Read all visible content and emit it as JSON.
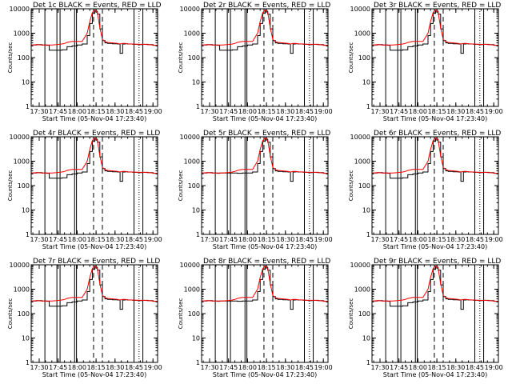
{
  "chart_data": {
    "type": "line",
    "panel_count": 9,
    "title_suffix": " BLACK = Events, RED = LLD",
    "ylabel": "Counts/sec",
    "xlabel": "Start Time (05-Nov-04 17:23:40)",
    "x_tick_labels": [
      "17:30",
      "17:45",
      "18:00",
      "18:15",
      "18:30",
      "18:45",
      "19:00"
    ],
    "x_tick_minutes": [
      30,
      45,
      60,
      75,
      90,
      105,
      120
    ],
    "xlim_minutes": [
      23.67,
      123.67
    ],
    "yscale": "log",
    "ylim": [
      1,
      10000
    ],
    "y_tick_labels": [
      "1",
      "10",
      "100",
      "1000",
      "10000"
    ],
    "series": [
      {
        "name": "Events",
        "color": "#000000"
      },
      {
        "name": "LLD",
        "color": "#ff0000"
      }
    ],
    "x_minutes": [
      24,
      28,
      32,
      36,
      38,
      40,
      44,
      48,
      50,
      52,
      56,
      60,
      64,
      68,
      70,
      72,
      74,
      76,
      78,
      80,
      82,
      84,
      88,
      92,
      94,
      96,
      98,
      100,
      104,
      108,
      112,
      116,
      120,
      123
    ],
    "panels": [
      {
        "title": "Det 1c",
        "events": [
          330,
          340,
          330,
          320,
          200,
          200,
          200,
          210,
          210,
          280,
          300,
          330,
          360,
          800,
          2500,
          6500,
          8000,
          6000,
          1500,
          500,
          400,
          380,
          370,
          360,
          150,
          360,
          370,
          360,
          350,
          340,
          350,
          340,
          320,
          310
        ],
        "lld": [
          330,
          340,
          330,
          330,
          330,
          330,
          340,
          360,
          380,
          420,
          460,
          460,
          460,
          1000,
          3000,
          7000,
          9000,
          7000,
          1700,
          550,
          450,
          420,
          400,
          380,
          360,
          380,
          380,
          370,
          360,
          350,
          350,
          340,
          330,
          320
        ],
        "vlines": [
          34.5,
          44,
          46.5,
          58,
          59.5,
          105,
          112
        ],
        "dashed": [
          73,
          80
        ],
        "dotted": [
          109
        ]
      },
      {
        "title": "Det 2r",
        "events": [
          330,
          340,
          330,
          320,
          200,
          200,
          200,
          210,
          210,
          280,
          300,
          330,
          360,
          800,
          2500,
          6500,
          8000,
          6000,
          1500,
          500,
          400,
          380,
          370,
          360,
          150,
          360,
          370,
          360,
          350,
          340,
          350,
          340,
          320,
          310
        ],
        "lld": [
          330,
          340,
          330,
          330,
          330,
          330,
          340,
          360,
          380,
          420,
          460,
          460,
          460,
          1000,
          3000,
          7000,
          9000,
          7000,
          1700,
          550,
          450,
          420,
          400,
          380,
          360,
          380,
          380,
          370,
          360,
          350,
          350,
          340,
          330,
          320
        ],
        "vlines": [
          34.5,
          44,
          46.5,
          58,
          59.5,
          105,
          112
        ],
        "dashed": [
          73,
          80
        ],
        "dotted": [
          109
        ]
      },
      {
        "title": "Det 3r",
        "events": [
          330,
          340,
          330,
          320,
          200,
          200,
          200,
          210,
          210,
          280,
          300,
          330,
          360,
          800,
          2500,
          6500,
          8000,
          6000,
          1500,
          500,
          400,
          380,
          370,
          360,
          150,
          360,
          370,
          360,
          350,
          340,
          350,
          340,
          320,
          310
        ],
        "lld": [
          330,
          340,
          330,
          330,
          330,
          330,
          340,
          360,
          380,
          420,
          460,
          460,
          460,
          1000,
          3000,
          7000,
          9000,
          7000,
          1700,
          550,
          450,
          420,
          400,
          380,
          360,
          380,
          380,
          370,
          360,
          350,
          350,
          340,
          330,
          320
        ],
        "vlines": [
          34.5,
          44,
          46.5,
          58,
          59.5,
          105,
          112
        ],
        "dashed": [
          73,
          80
        ],
        "dotted": [
          109
        ]
      },
      {
        "title": "Det 4r",
        "events": [
          330,
          340,
          330,
          320,
          200,
          200,
          200,
          210,
          210,
          280,
          300,
          330,
          360,
          800,
          2500,
          6500,
          8000,
          6000,
          1500,
          500,
          400,
          380,
          370,
          360,
          150,
          360,
          370,
          360,
          350,
          340,
          350,
          340,
          320,
          310
        ],
        "lld": [
          330,
          340,
          330,
          330,
          330,
          330,
          340,
          360,
          380,
          420,
          460,
          460,
          460,
          1000,
          3000,
          7000,
          9000,
          7000,
          1700,
          550,
          450,
          420,
          400,
          380,
          360,
          380,
          380,
          370,
          360,
          350,
          350,
          340,
          330,
          320
        ],
        "vlines": [
          34.5,
          44,
          46.5,
          58,
          59.5,
          105,
          112
        ],
        "dashed": [
          73,
          80
        ],
        "dotted": [
          109
        ]
      },
      {
        "title": "Det 5r",
        "events": [
          330,
          340,
          330,
          320,
          330,
          330,
          330,
          330,
          330,
          320,
          330,
          330,
          360,
          800,
          2500,
          6500,
          8000,
          6000,
          1500,
          500,
          400,
          380,
          370,
          360,
          150,
          360,
          370,
          360,
          350,
          340,
          350,
          340,
          320,
          310
        ],
        "lld": [
          330,
          340,
          330,
          330,
          330,
          330,
          340,
          360,
          380,
          420,
          460,
          460,
          460,
          1000,
          3000,
          7000,
          9000,
          7000,
          1700,
          550,
          450,
          420,
          400,
          380,
          360,
          380,
          380,
          370,
          360,
          350,
          350,
          340,
          330,
          320
        ],
        "vlines": [
          34.5,
          44,
          46.5,
          58,
          59.5,
          105,
          112
        ],
        "dashed": [
          73,
          80
        ],
        "dotted": [
          109
        ]
      },
      {
        "title": "Det 6r",
        "events": [
          330,
          340,
          330,
          320,
          200,
          200,
          200,
          210,
          210,
          280,
          300,
          330,
          360,
          800,
          2500,
          6500,
          8000,
          6000,
          1500,
          500,
          400,
          380,
          370,
          360,
          150,
          360,
          370,
          360,
          350,
          340,
          350,
          340,
          320,
          310
        ],
        "lld": [
          330,
          340,
          330,
          330,
          330,
          330,
          340,
          360,
          380,
          420,
          460,
          460,
          460,
          1000,
          3000,
          7000,
          9000,
          7000,
          1700,
          550,
          450,
          420,
          400,
          380,
          360,
          380,
          380,
          370,
          360,
          350,
          350,
          340,
          330,
          320
        ],
        "vlines": [
          34.5,
          44,
          46.5,
          58,
          59.5,
          105,
          112
        ],
        "dashed": [
          73,
          80
        ],
        "dotted": [
          109
        ]
      },
      {
        "title": "Det 7r",
        "events": [
          330,
          340,
          330,
          320,
          200,
          200,
          200,
          210,
          210,
          280,
          300,
          330,
          360,
          800,
          2500,
          6500,
          8000,
          6000,
          1500,
          500,
          400,
          380,
          370,
          360,
          150,
          360,
          370,
          360,
          350,
          340,
          350,
          340,
          320,
          310
        ],
        "lld": [
          330,
          340,
          330,
          330,
          330,
          330,
          340,
          360,
          380,
          420,
          460,
          460,
          460,
          1000,
          3000,
          7000,
          9000,
          7000,
          1700,
          550,
          450,
          420,
          400,
          380,
          360,
          380,
          380,
          370,
          360,
          350,
          350,
          340,
          330,
          320
        ],
        "vlines": [
          34.5,
          44,
          46.5,
          58,
          59.5,
          105,
          112
        ],
        "dashed": [
          73,
          80
        ],
        "dotted": [
          109
        ]
      },
      {
        "title": "Det 8r",
        "events": [
          330,
          340,
          330,
          320,
          330,
          330,
          330,
          330,
          330,
          320,
          330,
          330,
          360,
          800,
          2500,
          6500,
          8000,
          6000,
          1500,
          500,
          400,
          380,
          370,
          360,
          150,
          360,
          370,
          360,
          350,
          340,
          350,
          340,
          320,
          310
        ],
        "lld": [
          330,
          340,
          330,
          330,
          330,
          330,
          340,
          360,
          380,
          420,
          460,
          460,
          460,
          1000,
          3000,
          7000,
          9000,
          7000,
          1700,
          550,
          450,
          420,
          400,
          380,
          360,
          380,
          380,
          370,
          360,
          350,
          350,
          340,
          330,
          320
        ],
        "vlines": [
          34.5,
          44,
          46.5,
          58,
          59.5,
          105,
          112
        ],
        "dashed": [
          73,
          80
        ],
        "dotted": [
          109
        ]
      },
      {
        "title": "Det 9r",
        "events": [
          330,
          340,
          330,
          320,
          200,
          200,
          200,
          210,
          210,
          280,
          300,
          330,
          360,
          800,
          2500,
          6500,
          8000,
          6000,
          1500,
          500,
          400,
          380,
          370,
          360,
          150,
          360,
          370,
          360,
          350,
          340,
          350,
          340,
          320,
          310
        ],
        "lld": [
          330,
          340,
          330,
          330,
          330,
          330,
          340,
          360,
          380,
          420,
          460,
          460,
          460,
          1000,
          3000,
          7000,
          9000,
          7000,
          1700,
          550,
          450,
          420,
          400,
          380,
          360,
          380,
          380,
          370,
          360,
          350,
          350,
          340,
          330,
          320
        ],
        "vlines": [
          34.5,
          44,
          46.5,
          58,
          59.5,
          105,
          112
        ],
        "dashed": [
          73,
          80
        ],
        "dotted": [
          109
        ]
      }
    ]
  }
}
